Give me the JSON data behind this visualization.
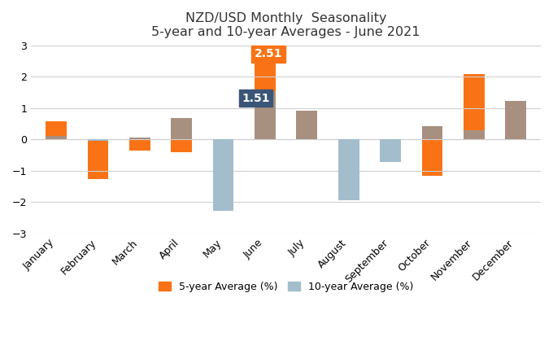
{
  "title_line1": "NZD/USD Monthly  Seasonality",
  "title_line2": "5-year and 10-year Averages - June 2021",
  "months": [
    "January",
    "February",
    "March",
    "April",
    "May",
    "June",
    "July",
    "August",
    "September",
    "October",
    "November",
    "December"
  ],
  "five_year": [
    0.58,
    -1.27,
    -0.35,
    -0.4,
    -0.15,
    2.51,
    0.0,
    -0.05,
    -0.08,
    -1.15,
    2.07,
    0.25
  ],
  "ten_year": [
    0.1,
    -0.05,
    0.05,
    0.68,
    -2.28,
    1.51,
    0.9,
    -1.95,
    -0.72,
    0.42,
    0.28,
    1.22
  ],
  "color_5yr": "#F97316",
  "color_10yr_pos": "#A89080",
  "color_10yr_neg": "#A3BDCC",
  "background_color": "#FFFFFF",
  "ylim_min": -3,
  "ylim_max": 3,
  "yticks": [
    -3,
    -2,
    -1,
    0,
    1,
    2,
    3
  ],
  "annotation_june_5yr_label": "2.51",
  "annotation_june_10yr_label": "1.51",
  "annotation_june_5yr_color": "#F97316",
  "annotation_june_10yr_color": "#3B5578",
  "legend_5yr": "5-year Average (%)",
  "legend_10yr": "10-year Average (%)",
  "legend_10yr_color": "#A3BDCC",
  "bar_width": 0.5,
  "title_fontsize": 11.5,
  "tick_fontsize": 9,
  "legend_fontsize": 9
}
